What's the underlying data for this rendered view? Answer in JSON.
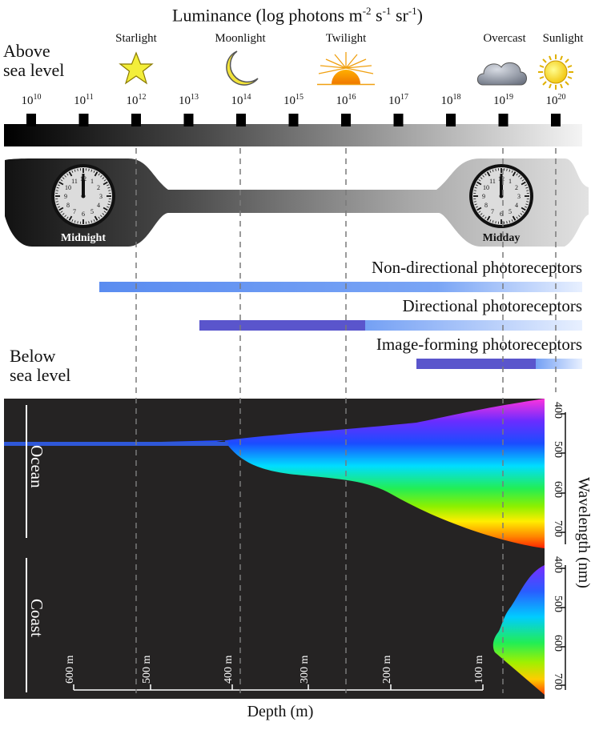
{
  "title": "Luminance (log photons m-2 s-1 sr-1)",
  "title_parts": {
    "main": "Luminance (log photons m",
    "exp1": "-2",
    "mid1": " s",
    "exp2": "-1",
    "mid2": " sr",
    "exp3": "-1",
    "end": ")"
  },
  "above_label": [
    "Above",
    "sea level"
  ],
  "below_label": [
    "Below",
    "sea level"
  ],
  "light_sources": [
    {
      "label": "Starlight",
      "icon": "star-icon"
    },
    {
      "label": "Moonlight",
      "icon": "moon-icon"
    },
    {
      "label": "Twilight",
      "icon": "sunset-icon"
    },
    {
      "label": "Overcast",
      "icon": "cloud-icon"
    },
    {
      "label": "Sunlight",
      "icon": "sun-icon"
    }
  ],
  "luminance_ticks": [
    10,
    11,
    12,
    13,
    14,
    15,
    16,
    17,
    18,
    19,
    20
  ],
  "luminance_tick_base": "10",
  "clocks": {
    "midnight": "Midnight",
    "midday": "Midday"
  },
  "photoreceptors": [
    {
      "label": "Non-directional photoreceptors",
      "start_exp": 11.3,
      "end_exp": 20.5,
      "color": "#5e8ef0"
    },
    {
      "label": "Directional photoreceptors",
      "start_exp": 13.2,
      "mid_exp": 16.4,
      "end_exp": 20.5,
      "color": "#5a55cc"
    },
    {
      "label": "Image-forming photoreceptors",
      "start_exp": 17.4,
      "mid_exp": 19.6,
      "end_exp": 20.5,
      "color": "#5a55cc"
    }
  ],
  "panels": {
    "ocean": "Ocean",
    "coast": "Coast"
  },
  "wavelength_axis": {
    "label": "Wavelength (nm)",
    "ticks": [
      "400",
      "500",
      "600",
      "700"
    ]
  },
  "depth_axis": {
    "label": "Depth (m)",
    "ticks": [
      "600 m",
      "500 m",
      "400 m",
      "300 m",
      "200 m",
      "100 m"
    ]
  },
  "colors": {
    "dark_panel": "#252323",
    "dashed": "#7a7a7a",
    "blue_line": "#2f58d8"
  }
}
